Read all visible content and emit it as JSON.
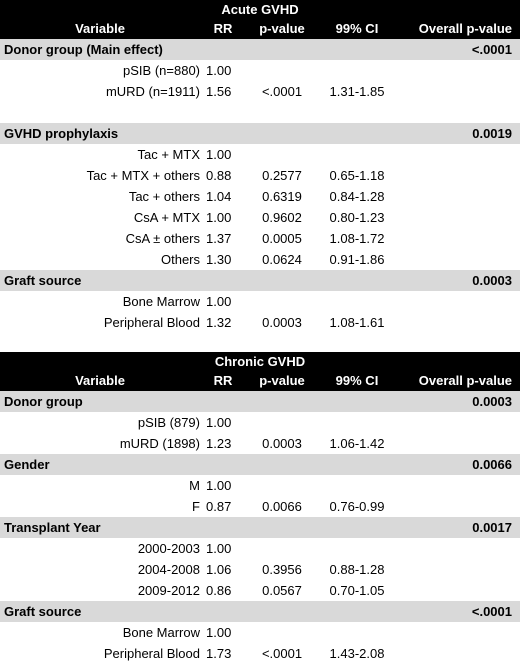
{
  "header": {
    "variable": "Variable",
    "rr": "RR",
    "pvalue": "p-value",
    "ci": "99% CI",
    "overall": "Overall p-value"
  },
  "tables": [
    {
      "title": "Acute GVHD",
      "groups": [
        {
          "name": "Donor group (Main effect)",
          "overall_p": "<.0001",
          "rows": [
            {
              "variable": "pSIB (n=880)",
              "rr": "1.00",
              "p": "",
              "ci": ""
            },
            {
              "variable": "mURD (n=1911)",
              "rr": "1.56",
              "p": "<.0001",
              "ci": "1.31-1.85"
            }
          ]
        },
        {
          "name": "GVHD prophylaxis",
          "overall_p": "0.0019",
          "rows": [
            {
              "variable": "Tac + MTX",
              "rr": "1.00",
              "p": "",
              "ci": ""
            },
            {
              "variable": "Tac + MTX + others",
              "rr": "0.88",
              "p": "0.2577",
              "ci": "0.65-1.18"
            },
            {
              "variable": "Tac + others",
              "rr": "1.04",
              "p": "0.6319",
              "ci": "0.84-1.28"
            },
            {
              "variable": "CsA + MTX",
              "rr": "1.00",
              "p": "0.9602",
              "ci": "0.80-1.23"
            },
            {
              "variable": "CsA ± others",
              "rr": "1.37",
              "p": "0.0005",
              "ci": "1.08-1.72"
            },
            {
              "variable": "Others",
              "rr": "1.30",
              "p": "0.0624",
              "ci": "0.91-1.86"
            }
          ]
        },
        {
          "name": "Graft source",
          "overall_p": "0.0003",
          "rows": [
            {
              "variable": "Bone Marrow",
              "rr": "1.00",
              "p": "",
              "ci": ""
            },
            {
              "variable": "Peripheral Blood",
              "rr": "1.32",
              "p": "0.0003",
              "ci": "1.08-1.61"
            }
          ]
        }
      ]
    },
    {
      "title": "Chronic GVHD",
      "groups": [
        {
          "name": "Donor group",
          "overall_p": "0.0003",
          "rows": [
            {
              "variable": "pSIB (879)",
              "rr": "1.00",
              "p": "",
              "ci": ""
            },
            {
              "variable": "mURD (1898)",
              "rr": "1.23",
              "p": "0.0003",
              "ci": "1.06-1.42"
            }
          ]
        },
        {
          "name": "Gender",
          "overall_p": "0.0066",
          "rows": [
            {
              "variable": "M",
              "rr": "1.00",
              "p": "",
              "ci": ""
            },
            {
              "variable": "F",
              "rr": "0.87",
              "p": "0.0066",
              "ci": "0.76-0.99"
            }
          ]
        },
        {
          "name": "Transplant Year",
          "overall_p": "0.0017",
          "rows": [
            {
              "variable": "2000-2003",
              "rr": "1.00",
              "p": "",
              "ci": ""
            },
            {
              "variable": "2004-2008",
              "rr": "1.06",
              "p": "0.3956",
              "ci": "0.88-1.28"
            },
            {
              "variable": "2009-2012",
              "rr": "0.86",
              "p": "0.0567",
              "ci": "0.70-1.05"
            }
          ]
        },
        {
          "name": "Graft source",
          "overall_p": "<.0001",
          "rows": [
            {
              "variable": "Bone Marrow",
              "rr": "1.00",
              "p": "",
              "ci": ""
            },
            {
              "variable": "Peripheral Blood",
              "rr": "1.73",
              "p": "<.0001",
              "ci": "1.43-2.08"
            }
          ]
        }
      ]
    }
  ]
}
